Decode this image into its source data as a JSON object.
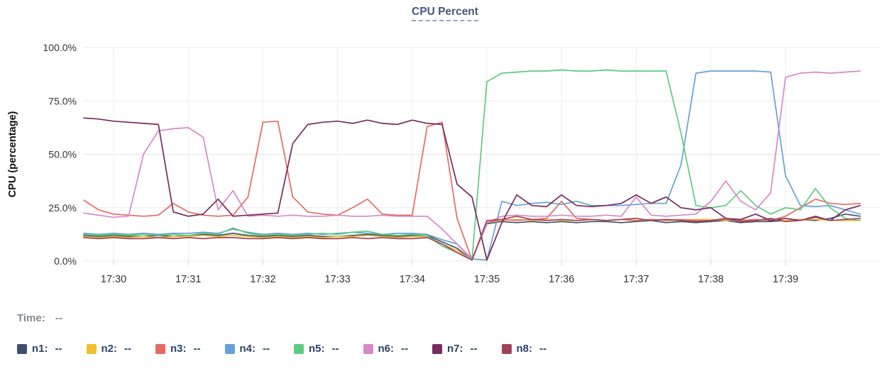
{
  "title": "CPU Percent",
  "time_row": {
    "label": "Time:",
    "value": "--"
  },
  "chart_data": {
    "type": "line",
    "title": "CPU Percent",
    "xlabel": "",
    "ylabel": "CPU (percentage)",
    "ylim": [
      0,
      100
    ],
    "grid": true,
    "legend_position": "bottom",
    "y_tick_values": [
      0,
      25,
      50,
      75,
      100
    ],
    "y_tick_labels": [
      "0.0%",
      "25.0%",
      "50.0%",
      "75.0%",
      "100.0%"
    ],
    "x_tick_labels": [
      "17:30",
      "17:31",
      "17:32",
      "17:33",
      "17:34",
      "17:35",
      "17:36",
      "17:37",
      "17:38",
      "17:39"
    ],
    "x_tick_indices": [
      2,
      7,
      12,
      17,
      22,
      27,
      32,
      37,
      42,
      47
    ],
    "x_interval_seconds": 12,
    "series": [
      {
        "name": "n1",
        "legend_value": "--",
        "color": "#3e4f6d",
        "values": [
          12,
          11.5,
          12,
          11.5,
          11.5,
          12,
          11.5,
          12,
          12.5,
          12,
          13,
          12,
          11.5,
          12,
          11.5,
          12,
          11.5,
          11.5,
          12,
          12.5,
          12,
          11.5,
          12,
          12,
          9,
          6,
          0.5,
          17.5,
          18.5,
          18,
          18.5,
          18,
          18.5,
          18,
          18.5,
          18.5,
          18,
          18.5,
          19,
          18,
          18.5,
          18,
          18.5,
          19,
          18,
          18.5,
          18.5,
          19,
          19.5,
          19,
          20,
          22,
          21
        ]
      },
      {
        "name": "n2",
        "legend_value": "--",
        "color": "#efc132",
        "values": [
          11.5,
          11,
          11.5,
          11,
          11.5,
          11,
          11.5,
          11.5,
          12,
          11.5,
          12,
          11.5,
          11,
          11.5,
          11,
          11.5,
          11,
          11.5,
          11.5,
          12,
          11.5,
          11,
          11.5,
          11.5,
          8,
          5,
          0.5,
          18,
          19,
          19.5,
          19,
          19.5,
          19,
          19,
          19.5,
          19,
          19.5,
          19,
          19.5,
          19,
          19,
          19.5,
          19.5,
          19,
          19.5,
          19,
          19.5,
          19,
          19.5,
          19.5,
          19,
          19,
          19
        ]
      },
      {
        "name": "n3",
        "legend_value": "--",
        "color": "#e66a60",
        "values": [
          28.5,
          24,
          22,
          21.5,
          21,
          21.5,
          27,
          23,
          21.5,
          21,
          21.5,
          30,
          65,
          65.5,
          30,
          23,
          22,
          21.5,
          25,
          29,
          22,
          21.5,
          21.5,
          63,
          65,
          20,
          0.5,
          18,
          19.5,
          19,
          19.5,
          20,
          28,
          20,
          19.5,
          19,
          19.5,
          19,
          19.5,
          19,
          19.5,
          19,
          19,
          19.5,
          19,
          19.5,
          19,
          21,
          25,
          29,
          27,
          26.5,
          27
        ]
      },
      {
        "name": "n4",
        "legend_value": "--",
        "color": "#64a1d8",
        "values": [
          13,
          12.5,
          13,
          12.5,
          13,
          12.5,
          13,
          13,
          13.5,
          13,
          15,
          13.5,
          12.5,
          13,
          12.5,
          13,
          12.5,
          13,
          13.5,
          13,
          12.5,
          13,
          13,
          12.5,
          10,
          8,
          1,
          0.5,
          28,
          26,
          27,
          27.5,
          26.5,
          28,
          26,
          26,
          26,
          26.5,
          27,
          27,
          45,
          88,
          89,
          89,
          89,
          89,
          88.5,
          40,
          26,
          25.5,
          26,
          24,
          22
        ]
      },
      {
        "name": "n5",
        "legend_value": "--",
        "color": "#5dcb80",
        "values": [
          12.5,
          12,
          12.5,
          12,
          12.5,
          12,
          12.5,
          12,
          13,
          12.5,
          15.5,
          13,
          12,
          12.5,
          12,
          12.5,
          13,
          12.5,
          13.5,
          14,
          12.5,
          12,
          12.5,
          12,
          7,
          4,
          0.5,
          84,
          88,
          88.5,
          89,
          89,
          89.5,
          89,
          89,
          89.5,
          89,
          89,
          89,
          89,
          60,
          26,
          25,
          26,
          33,
          26,
          22,
          25,
          24,
          34,
          25,
          20,
          19
        ]
      },
      {
        "name": "n6",
        "legend_value": "--",
        "color": "#d788c9",
        "values": [
          22.5,
          21.5,
          20.5,
          21,
          50,
          61,
          62,
          62.5,
          58,
          24,
          33,
          21,
          21.5,
          21,
          21.5,
          21,
          21,
          21.5,
          21,
          21,
          21.5,
          21,
          21,
          21,
          15,
          8,
          0.5,
          18,
          21,
          21.5,
          21,
          21,
          21.5,
          21,
          21,
          21.5,
          21,
          30,
          21.5,
          21,
          21.5,
          22,
          28,
          37.5,
          28,
          24,
          32,
          86,
          88,
          88.5,
          88,
          88.5,
          89
        ]
      },
      {
        "name": "n7",
        "legend_value": "--",
        "color": "#772a60",
        "values": [
          67,
          66.5,
          65.5,
          65,
          64.5,
          64,
          23,
          21,
          22,
          29,
          21,
          21.5,
          22,
          22.5,
          55,
          64,
          65,
          65.5,
          64.5,
          66,
          64.5,
          64,
          66,
          64.5,
          64,
          36,
          30,
          0.5,
          18,
          31,
          26,
          25.5,
          31,
          26,
          25.5,
          26,
          27,
          31,
          27,
          30,
          25,
          24,
          25,
          20,
          19.5,
          22,
          19,
          20,
          19,
          21,
          19,
          24,
          26
        ]
      },
      {
        "name": "n8",
        "legend_value": "--",
        "color": "#9f4457",
        "values": [
          11,
          10.5,
          11,
          10.5,
          10.5,
          11,
          10.5,
          11,
          10.5,
          11,
          11,
          10.5,
          10.5,
          11,
          10.5,
          11,
          10.5,
          10.5,
          11,
          10.5,
          11,
          10.5,
          10.5,
          11,
          8,
          4,
          0.5,
          19,
          19.5,
          21,
          19.5,
          19,
          19.5,
          19,
          19.5,
          19,
          19.5,
          20,
          19,
          19.5,
          19,
          18.5,
          19,
          20,
          18.5,
          19,
          20,
          18.5,
          19,
          20.5,
          19,
          19.5,
          20
        ]
      }
    ]
  },
  "style": {
    "grid_color_h": "#e8e8e8",
    "grid_color_v": "#ededed",
    "tick_mark_color": "#d9d9d9",
    "tick_label_color": "#333333",
    "axis_title_color": "#111111",
    "title_color": "#47567c",
    "legend_text_color": "#2d4268",
    "time_label_color": "#85898f"
  }
}
